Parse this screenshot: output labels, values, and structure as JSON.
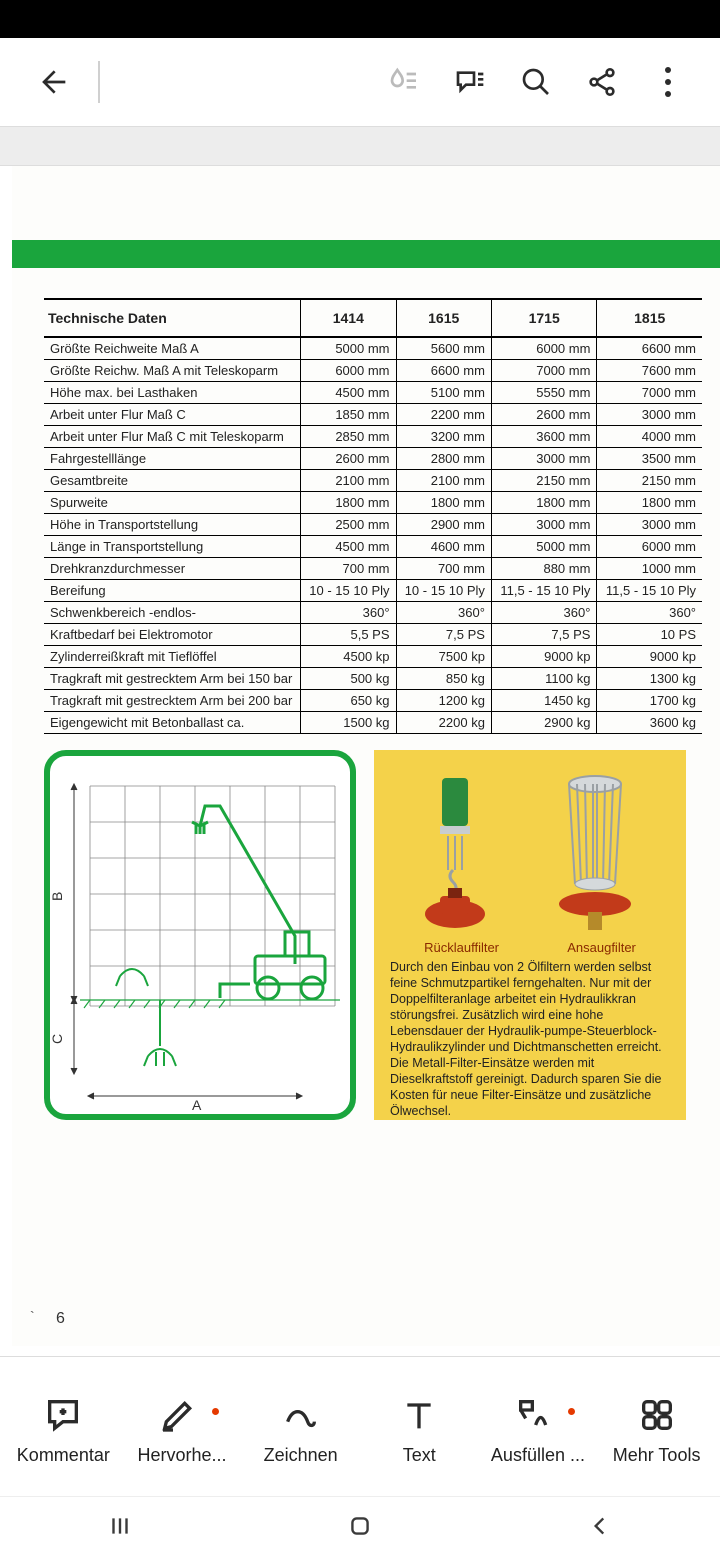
{
  "colors": {
    "accent_green": "#1aa53d",
    "info_bg": "#f4d24a",
    "filter_red": "#c23a1a",
    "filter_green": "#2b8a3e",
    "filter_silver": "#bfc3c6",
    "label_brown": "#8a2a00"
  },
  "toolbar_top": {
    "back": "Zurück",
    "search": "Suchen",
    "share": "Teilen",
    "more": "Mehr"
  },
  "spec_table": {
    "header_label": "Technische Daten",
    "models": [
      "1414",
      "1615",
      "1715",
      "1815"
    ],
    "rows": [
      {
        "label": "Größte Reichweite Maß A",
        "v": [
          "5000 mm",
          "5600 mm",
          "6000 mm",
          "6600 mm"
        ]
      },
      {
        "label": "Größte Reichw. Maß A mit Teleskoparm",
        "v": [
          "6000 mm",
          "6600 mm",
          "7000 mm",
          "7600 mm"
        ]
      },
      {
        "label": "Höhe max. bei Lasthaken",
        "v": [
          "4500 mm",
          "5100 mm",
          "5550 mm",
          "7000 mm"
        ]
      },
      {
        "label": "Arbeit unter Flur Maß C",
        "v": [
          "1850 mm",
          "2200 mm",
          "2600 mm",
          "3000 mm"
        ]
      },
      {
        "label": "Arbeit unter Flur Maß C mit Teleskoparm",
        "v": [
          "2850 mm",
          "3200 mm",
          "3600 mm",
          "4000 mm"
        ]
      },
      {
        "label": "Fahrgestelllänge",
        "v": [
          "2600 mm",
          "2800 mm",
          "3000 mm",
          "3500 mm"
        ]
      },
      {
        "label": "Gesamtbreite",
        "v": [
          "2100 mm",
          "2100 mm",
          "2150 mm",
          "2150 mm"
        ]
      },
      {
        "label": "Spurweite",
        "v": [
          "1800 mm",
          "1800 mm",
          "1800 mm",
          "1800 mm"
        ]
      },
      {
        "label": "Höhe in Transportstellung",
        "v": [
          "2500 mm",
          "2900 mm",
          "3000 mm",
          "3000 mm"
        ]
      },
      {
        "label": "Länge in Transportstellung",
        "v": [
          "4500 mm",
          "4600 mm",
          "5000 mm",
          "6000 mm"
        ]
      },
      {
        "label": "Drehkranzdurchmesser",
        "v": [
          "700 mm",
          "700 mm",
          "880 mm",
          "1000 mm"
        ]
      },
      {
        "label": "Bereifung",
        "v": [
          "10 - 15 10 Ply",
          "10 - 15 10 Ply",
          "11,5 - 15 10 Ply",
          "11,5 - 15 10 Ply"
        ]
      },
      {
        "label": "Schwenkbereich -endlos-",
        "v": [
          "360°",
          "360°",
          "360°",
          "360°"
        ]
      },
      {
        "label": "Kraftbedarf bei Elektromotor",
        "v": [
          "5,5 PS",
          "7,5 PS",
          "7,5 PS",
          "10 PS"
        ]
      },
      {
        "label": "Zylinderreißkraft mit Tieflöffel",
        "v": [
          "4500 kp",
          "7500 kp",
          "9000 kp",
          "9000 kp"
        ]
      },
      {
        "label": "Tragkraft mit gestrecktem Arm bei 150 bar",
        "v": [
          "500 kg",
          "850 kg",
          "1100 kg",
          "1300 kg"
        ]
      },
      {
        "label": "Tragkraft mit gestrecktem Arm bei 200 bar",
        "v": [
          "650 kg",
          "1200 kg",
          "1450 kg",
          "1700 kg"
        ]
      },
      {
        "label": "Eigengewicht mit Betonballast ca.",
        "v": [
          "1500 kg",
          "2200 kg",
          "2900 kg",
          "3600 kg"
        ]
      }
    ]
  },
  "diagram": {
    "labels": {
      "A": "A",
      "B": "B",
      "C": "C"
    },
    "grid": {
      "cols": 7,
      "rows": 6,
      "stroke": "#888"
    }
  },
  "filters": {
    "left_label": "Rücklauffilter",
    "right_label": "Ansaugfilter",
    "text": "Durch den Einbau von 2 Ölfiltern werden selbst feine Schmutzpartikel ferngehalten. Nur mit der Doppelfilteranlage arbeitet ein Hydraulikkran störungsfrei. Zusätzlich wird eine hohe Lebensdauer der Hydraulik-pumpe-Steuerblock-Hydraulikzylinder und Dichtmanschetten erreicht. Die Metall-Filter-Einsätze werden mit Dieselkraftstoff gereinigt. Dadurch sparen Sie die Kosten für neue Filter-Einsätze und zusätzliche Ölwechsel."
  },
  "page_number": "6",
  "bottom_tools": {
    "comment": "Kommentar",
    "highlight": "Hervorhe...",
    "draw": "Zeichnen",
    "text": "Text",
    "fill": "Ausfüllen ...",
    "more": "Mehr Tools"
  }
}
